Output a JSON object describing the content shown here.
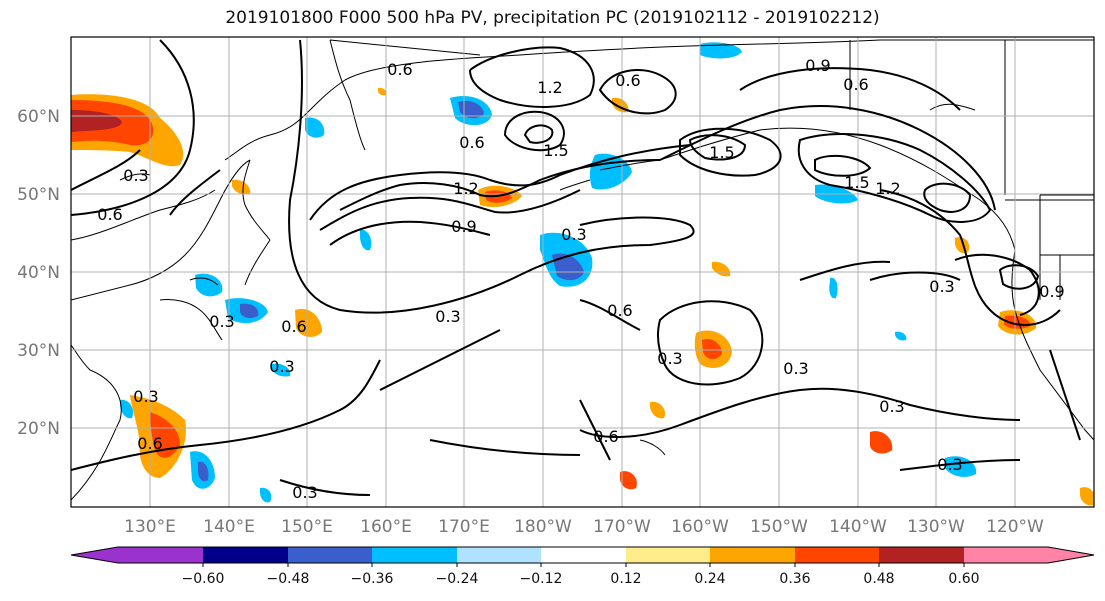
{
  "title": "2019101800 F000 500 hPa PV, precipitation PC (2019102112 - 2019102212)",
  "lat_labels": [
    "60°N",
    "50°N",
    "40°N",
    "30°N",
    "20°N"
  ],
  "lon_labels": [
    "130°E",
    "140°E",
    "150°E",
    "160°E",
    "170°E",
    "180°W",
    "170°W",
    "160°W",
    "150°W",
    "140°W",
    "130°W",
    "120°W"
  ],
  "contour_labels": [
    "0.6",
    "0.9",
    "0.6",
    "1.2",
    "0.6",
    "0.6",
    "1.5",
    "1.5",
    "1.5",
    "1.2",
    "0.3",
    "0.6",
    "1.2",
    "0.9",
    "0.3",
    "0.3",
    "0.3",
    "0.6",
    "0.3",
    "0.3",
    "0.6",
    "0.3",
    "0.3",
    "0.6",
    "0.3",
    "0.6",
    "0.9",
    "0.3",
    "0.3",
    "0.3"
  ],
  "colorbar": {
    "ticks": [
      "−0.60",
      "−0.48",
      "−0.36",
      "−0.24",
      "−0.12",
      "0.12",
      "0.24",
      "0.36",
      "0.48",
      "0.60"
    ],
    "colors": {
      "under": "#9a32cd",
      "neg_048_060": "#00008b",
      "neg_036_048": "#3a5fcd",
      "neg_024_036": "#00bfff",
      "neg_012_024": "#b0e2ff",
      "neutral": "#ffffff",
      "pos_012_024": "#ffec8b",
      "pos_024_036": "#ffa500",
      "pos_036_048": "#ff4500",
      "pos_048_060": "#b22222",
      "over": "#ff83a6"
    }
  }
}
